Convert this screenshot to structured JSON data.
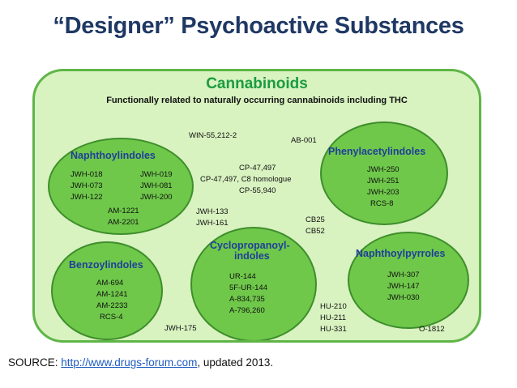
{
  "slide": {
    "title": "“Designer” Psychoactive Substances"
  },
  "diagram": {
    "title": "Cannabinoids",
    "subtitle": "Functionally related to naturally occurring cannabinoids including THC",
    "groups": {
      "naphthoylindoles": {
        "title": "Naphthoylindoles",
        "items": [
          "JWH-018",
          "JWH-073",
          "JWH-122",
          "JWH-019",
          "JWH-081",
          "JWH-200",
          "AM-1221",
          "AM-2201"
        ]
      },
      "phenylacetylindoles": {
        "title": "Phenylacetylindoles",
        "items": [
          "JWH-250",
          "JWH-251",
          "JWH-203",
          "RCS-8"
        ]
      },
      "benzoylindoles": {
        "title": "Benzoylindoles",
        "items": [
          "AM-694",
          "AM-1241",
          "AM-2233",
          "RCS-4"
        ]
      },
      "cyclopropanoylindoles": {
        "title_line1": "Cyclopropanoyl-",
        "title_line2": "indoles",
        "items": [
          "UR-144",
          "5F-UR-144",
          "A-834,735",
          "A-796,260"
        ]
      },
      "naphthoylpyrroles": {
        "title": "Naphthoylpyrroles",
        "items": [
          "JWH-307",
          "JWH-147",
          "JWH-030"
        ]
      }
    },
    "loose_items": {
      "win": "WIN-55,212-2",
      "ab001": "AB-001",
      "cp1": "CP-47,497",
      "cp2": "CP-47,497,  C8 homologue",
      "cp3": "CP-55,940",
      "jwh133": "JWH-133",
      "jwh161": "JWH-161",
      "cb25": "CB25",
      "cb52": "CB52",
      "hu210": "HU-210",
      "hu211": "HU-211",
      "hu331": "HU-331",
      "jwh175": "JWH-175",
      "o1812": "O-1812"
    },
    "colors": {
      "panel_bg": "#d8f2c0",
      "circle_fill": "#6fc84a",
      "group_title": "#1f3f9a",
      "diagram_title": "#1a9c3e"
    }
  },
  "source": {
    "prefix": "SOURCE: ",
    "link": "http://www.drugs-forum.com",
    "suffix": ", updated 2013."
  }
}
